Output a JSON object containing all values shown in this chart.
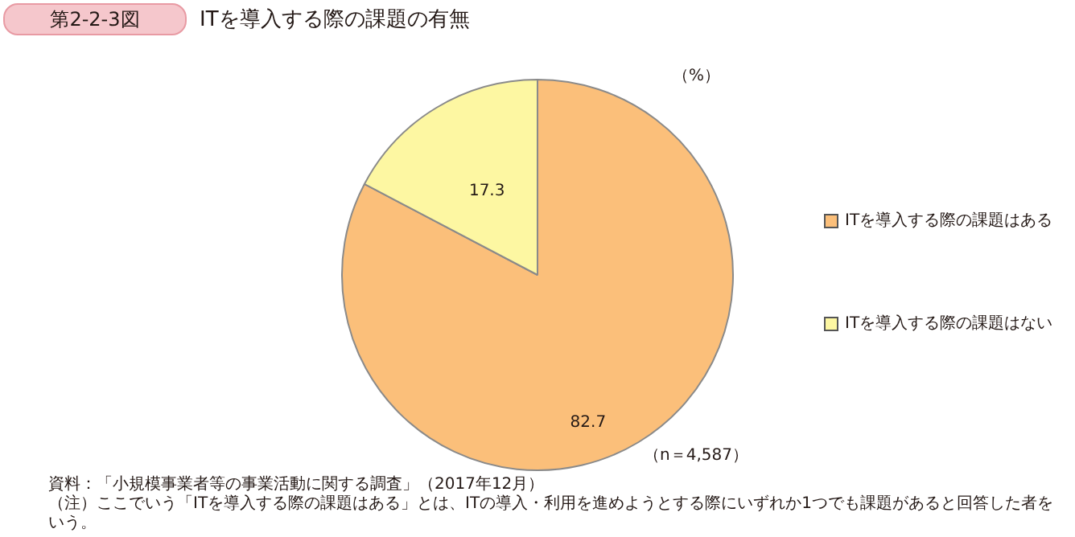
{
  "chart_data": {
    "type": "pie",
    "title": "ITを導入する際の課題の有無",
    "categories": [
      "ITを導入する際の課題はある",
      "ITを導入する際の課題はない"
    ],
    "values": [
      82.7,
      17.3
    ],
    "colors": [
      "#fbbf7a",
      "#fdf7a2"
    ],
    "data_labels": true,
    "legend": "right",
    "annotations": [
      "第2-2-3図",
      "（%）",
      "（n＝4,587）",
      "資料：「小規模事業者等の事業活動に関する調査」（2017年12月）",
      "（注）ここでいう「ITを導入する際の課題はある」とは、ITの導入・利用を進めようとする際にいずれか1つでも課題があると回答した者をいう。"
    ]
  }
}
